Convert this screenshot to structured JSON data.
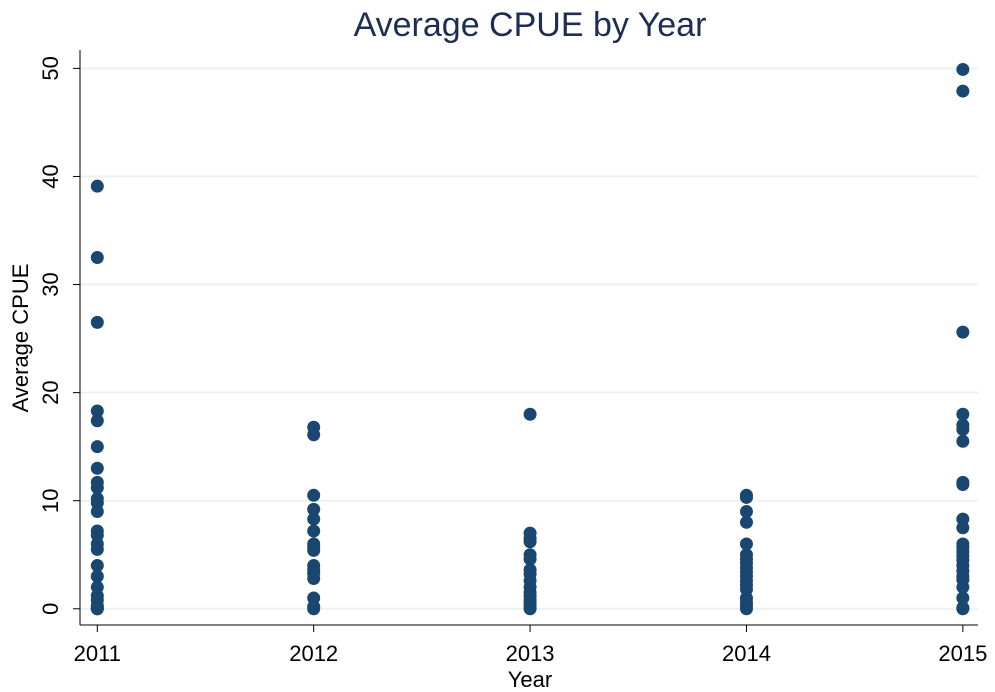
{
  "chart_data": {
    "type": "scatter",
    "title": "Average CPUE by Year",
    "x_label": "Year",
    "y_label": "Average CPUE",
    "series": [
      {
        "color": "#1a476f",
        "x": [
          2011,
          2011,
          2011,
          2011,
          2011,
          2011,
          2011,
          2011,
          2011,
          2011,
          2011,
          2011,
          2011,
          2011,
          2011,
          2011,
          2011,
          2011,
          2011,
          2011,
          2011,
          2011,
          2011,
          2011,
          2011,
          2012,
          2012,
          2012,
          2012,
          2012,
          2012,
          2012,
          2012,
          2012,
          2012,
          2012,
          2012,
          2012,
          2012,
          2012,
          2012,
          2013,
          2013,
          2013,
          2013,
          2013,
          2013,
          2013,
          2013,
          2013,
          2013,
          2013,
          2013,
          2013,
          2013,
          2013,
          2013,
          2014,
          2014,
          2014,
          2014,
          2014,
          2014,
          2014,
          2014,
          2014,
          2014,
          2014,
          2014,
          2014,
          2014,
          2014,
          2014,
          2014,
          2014,
          2015,
          2015,
          2015,
          2015,
          2015,
          2015,
          2015,
          2015,
          2015,
          2015,
          2015,
          2015,
          2015,
          2015,
          2015,
          2015,
          2015,
          2015,
          2015,
          2015,
          2015,
          2015,
          2015,
          2015
        ],
        "values": [
          39.1,
          32.5,
          26.5,
          18.3,
          17.4,
          15,
          13,
          11.7,
          11.2,
          10.2,
          9.8,
          9,
          7.2,
          6.8,
          6,
          5.5,
          4,
          3,
          2,
          1.2,
          0.8,
          0.3,
          0.1,
          0,
          0,
          16.8,
          16.1,
          10.5,
          9.2,
          8.3,
          7.2,
          6,
          5.7,
          5.4,
          4,
          3.6,
          3.3,
          2.8,
          1,
          0.2,
          0,
          18,
          7,
          6.5,
          6.2,
          5,
          4.6,
          3.6,
          3.2,
          2.6,
          2,
          1.5,
          1.2,
          0.8,
          0.5,
          0.2,
          0,
          10.5,
          10.3,
          9,
          8,
          6,
          5,
          4.6,
          4.2,
          3.8,
          3.4,
          3,
          2.6,
          2.2,
          1.8,
          1,
          0.6,
          0.3,
          0,
          49.9,
          47.9,
          25.6,
          18,
          17,
          16.6,
          15.5,
          11.7,
          11.5,
          8.3,
          7.5,
          6,
          5.7,
          5.3,
          4.9,
          4.5,
          4,
          3.5,
          3,
          2.7,
          2,
          1,
          0.1,
          0
        ]
      }
    ],
    "xlim": [
      2010.92,
      2015.07
    ],
    "xticks": [
      2011,
      2012,
      2013,
      2014,
      2015
    ],
    "ylim": [
      -1.5,
      51.7
    ],
    "yticks": [
      0,
      10,
      20,
      30,
      40,
      50
    ],
    "grid": true
  }
}
